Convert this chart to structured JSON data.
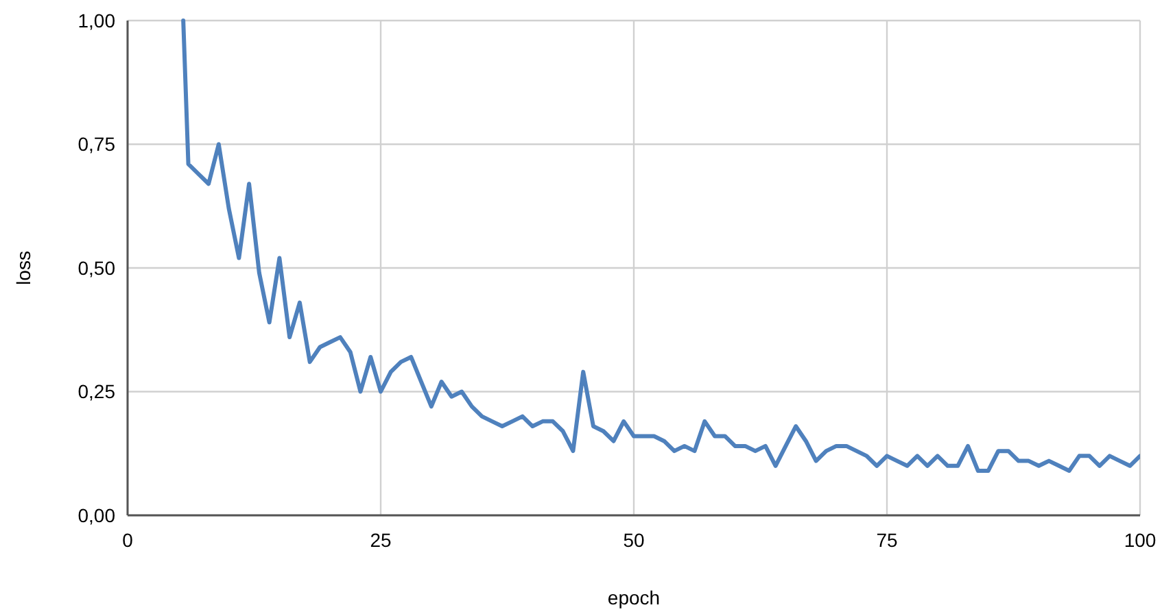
{
  "chart_data": {
    "type": "line",
    "xlabel": "epoch",
    "ylabel": "loss",
    "xlim": [
      0,
      100
    ],
    "xticks": [
      0,
      25,
      50,
      75,
      100
    ],
    "ylim": [
      0,
      1
    ],
    "yticks": [
      {
        "value": 0,
        "label": "0,00"
      },
      {
        "value": 0.25,
        "label": "0,25"
      },
      {
        "value": 0.5,
        "label": "0,50"
      },
      {
        "value": 0.75,
        "label": "0,75"
      },
      {
        "value": 1,
        "label": "1,00"
      }
    ],
    "grid": true,
    "marker": "none",
    "line_style": "solid",
    "x": [
      5.5,
      6,
      7,
      8,
      9,
      10,
      11,
      12,
      13,
      14,
      15,
      16,
      17,
      18,
      19,
      20,
      21,
      22,
      23,
      24,
      25,
      26,
      27,
      28,
      29,
      30,
      31,
      32,
      33,
      34,
      35,
      36,
      37,
      38,
      39,
      40,
      41,
      42,
      43,
      44,
      45,
      46,
      47,
      48,
      49,
      50,
      51,
      52,
      53,
      54,
      55,
      56,
      57,
      58,
      59,
      60,
      61,
      62,
      63,
      64,
      65,
      66,
      67,
      68,
      69,
      70,
      71,
      72,
      73,
      74,
      75,
      76,
      77,
      78,
      79,
      80,
      81,
      82,
      83,
      84,
      85,
      86,
      87,
      88,
      89,
      90,
      91,
      92,
      93,
      94,
      95,
      96,
      97,
      98,
      99,
      100
    ],
    "series": [
      {
        "color": "#4f81bd",
        "values": [
          1,
          0.71,
          0.69,
          0.67,
          0.75,
          0.62,
          0.52,
          0.67,
          0.49,
          0.39,
          0.52,
          0.36,
          0.43,
          0.31,
          0.34,
          0.35,
          0.36,
          0.33,
          0.25,
          0.32,
          0.25,
          0.29,
          0.31,
          0.32,
          0.27,
          0.22,
          0.27,
          0.24,
          0.25,
          0.22,
          0.2,
          0.19,
          0.18,
          0.19,
          0.2,
          0.18,
          0.19,
          0.19,
          0.17,
          0.13,
          0.29,
          0.18,
          0.17,
          0.15,
          0.19,
          0.16,
          0.16,
          0.16,
          0.15,
          0.13,
          0.14,
          0.13,
          0.19,
          0.16,
          0.16,
          0.14,
          0.14,
          0.13,
          0.14,
          0.1,
          0.14,
          0.18,
          0.15,
          0.11,
          0.13,
          0.14,
          0.14,
          0.13,
          0.12,
          0.1,
          0.12,
          0.11,
          0.1,
          0.12,
          0.1,
          0.12,
          0.1,
          0.1,
          0.14,
          0.09,
          0.09,
          0.13,
          0.13,
          0.11,
          0.11,
          0.1,
          0.11,
          0.1,
          0.09,
          0.12,
          0.12,
          0.1,
          0.12,
          0.11,
          0.1,
          0.12
        ]
      }
    ]
  }
}
